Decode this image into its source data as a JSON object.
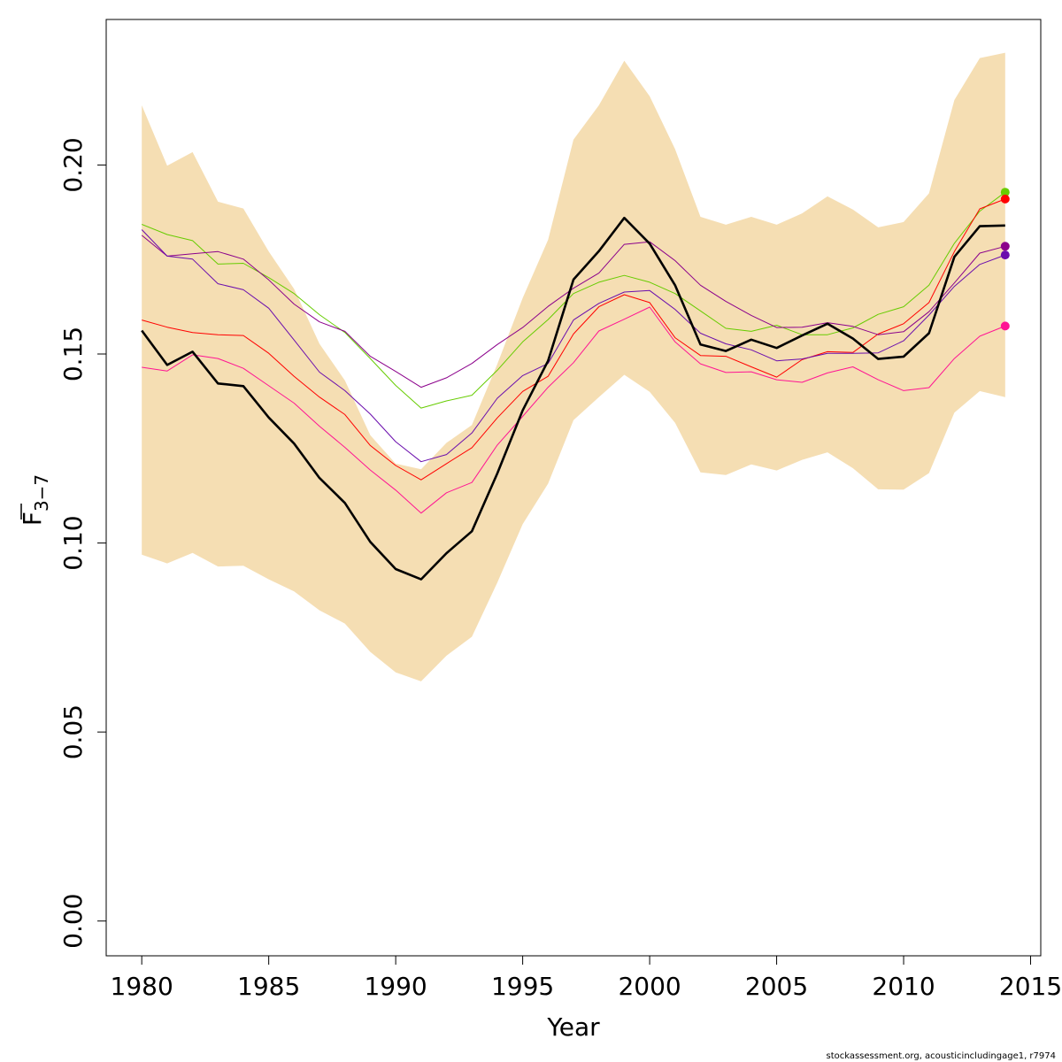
{
  "chart_data": {
    "type": "line",
    "xlabel": "Year",
    "ylabel_main": "F",
    "ylabel_sub": "3−7",
    "footer": "stockassessment.org, acousticincludingage1, r7974",
    "xlim": [
      1978.6,
      2015.4
    ],
    "ylim": [
      -0.0092,
      0.2385
    ],
    "x_ticks": [
      1980,
      1985,
      1990,
      1995,
      2000,
      2005,
      2010,
      2015
    ],
    "y_ticks": [
      0.0,
      0.05,
      0.1,
      0.15,
      0.2
    ],
    "x_tick_labels": [
      "1980",
      "1985",
      "1990",
      "1995",
      "2000",
      "2005",
      "2010",
      "2015"
    ],
    "y_tick_labels": [
      "0.00",
      "0.05",
      "0.10",
      "0.15",
      "0.20"
    ],
    "x": [
      1980,
      1981,
      1982,
      1983,
      1984,
      1985,
      1986,
      1987,
      1988,
      1989,
      1990,
      1991,
      1992,
      1993,
      1994,
      1995,
      1996,
      1997,
      1998,
      1999,
      2000,
      2001,
      2002,
      2003,
      2004,
      2005,
      2006,
      2007,
      2008,
      2009,
      2010,
      2011,
      2012,
      2013,
      2014
    ],
    "band": {
      "color": "#f5deb3",
      "upper": [
        0.2158,
        0.1998,
        0.2034,
        0.1903,
        0.1885,
        0.1771,
        0.1672,
        0.1527,
        0.143,
        0.1285,
        0.121,
        0.1195,
        0.1265,
        0.1312,
        0.1473,
        0.1648,
        0.1802,
        0.2067,
        0.2158,
        0.2276,
        0.2182,
        0.2042,
        0.1863,
        0.1842,
        0.1863,
        0.1842,
        0.1872,
        0.1917,
        0.1882,
        0.1835,
        0.1849,
        0.1925,
        0.2172,
        0.2283,
        0.2297
      ],
      "lower": [
        0.0969,
        0.0946,
        0.0974,
        0.0938,
        0.094,
        0.0904,
        0.0872,
        0.0822,
        0.0787,
        0.0712,
        0.0658,
        0.0634,
        0.0702,
        0.0752,
        0.0895,
        0.105,
        0.1157,
        0.1325,
        0.1386,
        0.1445,
        0.14,
        0.1318,
        0.1187,
        0.118,
        0.1208,
        0.1192,
        0.122,
        0.124,
        0.1198,
        0.1142,
        0.1141,
        0.1185,
        0.1345,
        0.1402,
        0.1386
      ]
    },
    "series": [
      {
        "color": "#66cc00",
        "values": [
          0.1843,
          0.1816,
          0.18,
          0.1738,
          0.174,
          0.1702,
          0.166,
          0.1604,
          0.1557,
          0.1488,
          0.1417,
          0.1357,
          0.1376,
          0.1391,
          0.1457,
          0.1532,
          0.1591,
          0.166,
          0.169,
          0.1708,
          0.169,
          0.166,
          0.1614,
          0.1568,
          0.156,
          0.1576,
          0.1551,
          0.1551,
          0.1569,
          0.1605,
          0.1625,
          0.1682,
          0.1793,
          0.1878,
          0.1928
        ],
        "end_dot": true
      },
      {
        "color": "#ff0000",
        "values": [
          0.159,
          0.1571,
          0.1557,
          0.1551,
          0.1549,
          0.1502,
          0.1441,
          0.1386,
          0.134,
          0.1258,
          0.1205,
          0.1167,
          0.121,
          0.1252,
          0.1331,
          0.1401,
          0.1441,
          0.1553,
          0.1625,
          0.1657,
          0.1636,
          0.1543,
          0.1496,
          0.1494,
          0.1466,
          0.1439,
          0.1485,
          0.1506,
          0.1504,
          0.1553,
          0.158,
          0.1636,
          0.1771,
          0.1884,
          0.191
        ],
        "end_dot": true
      },
      {
        "color": "#8b008b",
        "values": [
          0.1814,
          0.1759,
          0.1765,
          0.1771,
          0.1751,
          0.1696,
          0.1632,
          0.1585,
          0.156,
          0.1494,
          0.1454,
          0.1412,
          0.1437,
          0.1475,
          0.1525,
          0.157,
          0.1626,
          0.1674,
          0.1714,
          0.179,
          0.1797,
          0.1747,
          0.1682,
          0.1639,
          0.1602,
          0.157,
          0.1571,
          0.1583,
          0.1573,
          0.1551,
          0.1559,
          0.1612,
          0.1688,
          0.1767,
          0.1785
        ],
        "end_dot": true
      },
      {
        "color": "#6a0dad",
        "values": [
          0.1829,
          0.1759,
          0.1751,
          0.1686,
          0.167,
          0.1621,
          0.1537,
          0.1452,
          0.1403,
          0.1341,
          0.1268,
          0.1215,
          0.1234,
          0.1291,
          0.1383,
          0.1443,
          0.1475,
          0.159,
          0.1634,
          0.1664,
          0.1668,
          0.1618,
          0.1555,
          0.1527,
          0.1511,
          0.1482,
          0.1487,
          0.1502,
          0.1502,
          0.1503,
          0.1535,
          0.1603,
          0.1679,
          0.1737,
          0.1762
        ],
        "end_dot": true
      },
      {
        "color": "#ff1493",
        "values": [
          0.1465,
          0.1455,
          0.1498,
          0.1488,
          0.1462,
          0.1416,
          0.137,
          0.1309,
          0.1253,
          0.1193,
          0.114,
          0.1079,
          0.1133,
          0.116,
          0.1259,
          0.1335,
          0.1412,
          0.1477,
          0.1561,
          0.1592,
          0.1624,
          0.1532,
          0.1474,
          0.1451,
          0.1453,
          0.1432,
          0.1425,
          0.145,
          0.1466,
          0.1432,
          0.1403,
          0.1411,
          0.1488,
          0.1547,
          0.1574
        ],
        "end_dot": true
      },
      {
        "color": "#000000",
        "values": [
          0.1562,
          0.1471,
          0.1506,
          0.1422,
          0.1415,
          0.1332,
          0.1263,
          0.1172,
          0.1106,
          0.1003,
          0.0931,
          0.0904,
          0.0973,
          0.1031,
          0.1184,
          0.1351,
          0.1482,
          0.1697,
          0.1772,
          0.186,
          0.1792,
          0.1682,
          0.1525,
          0.1508,
          0.1538,
          0.1516,
          0.1549,
          0.158,
          0.1541,
          0.1487,
          0.1493,
          0.1555,
          0.1757,
          0.1838,
          0.184
        ],
        "end_dot": false,
        "thick": true
      }
    ]
  }
}
